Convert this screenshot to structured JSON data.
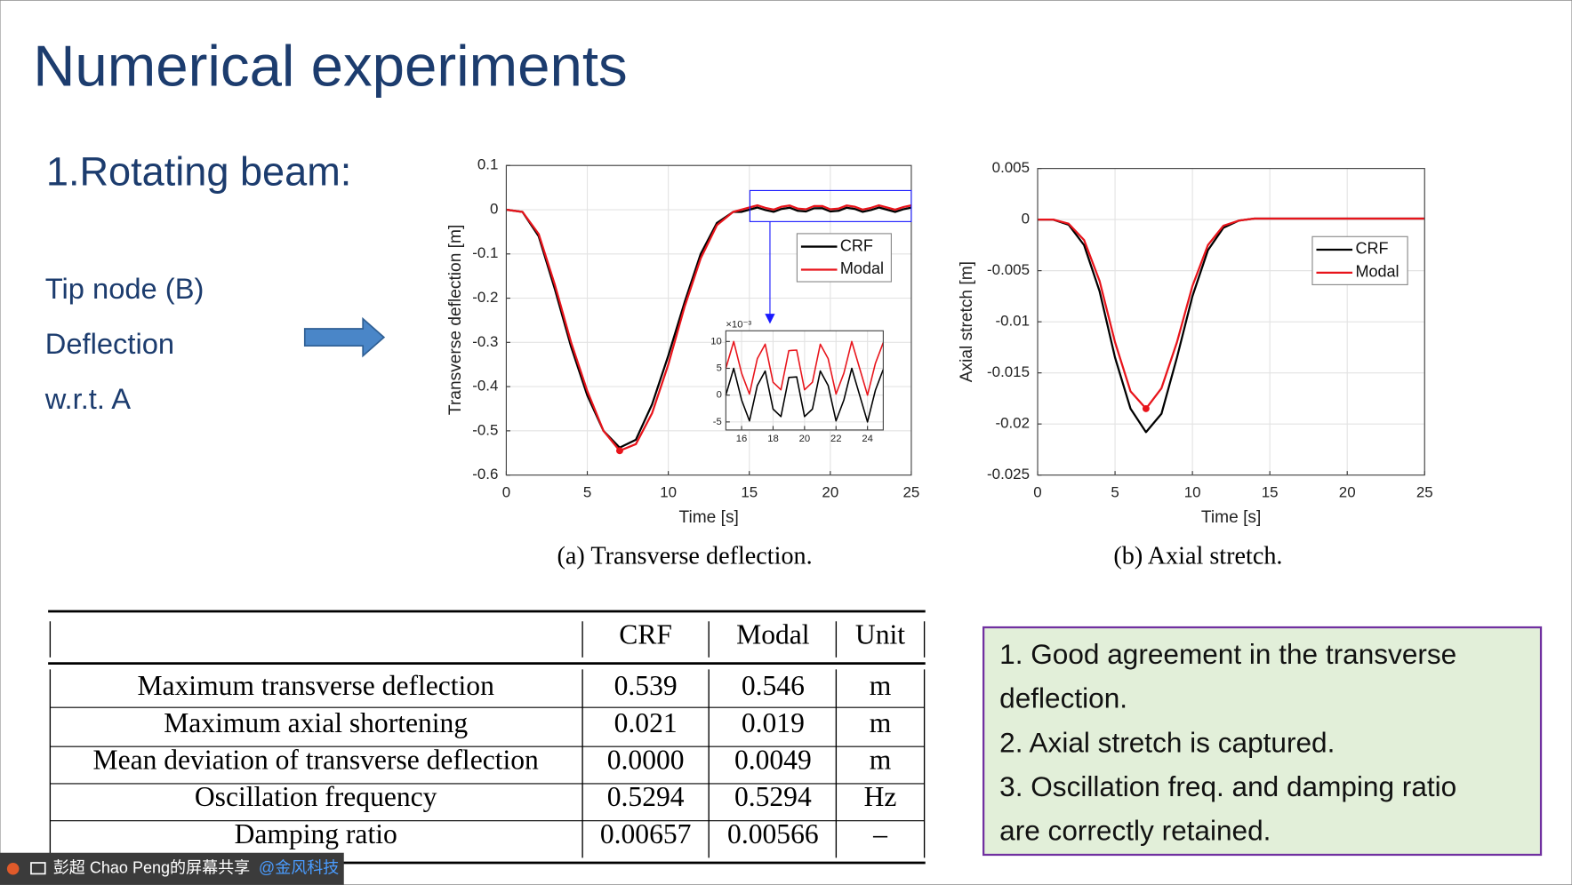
{
  "title": "Numerical experiments",
  "section": "1.Rotating beam:",
  "side_labels": [
    "Tip node (B)",
    "Deflection",
    "w.r.t. A"
  ],
  "captions": [
    "(a) Transverse deflection.",
    "(b) Axial stretch."
  ],
  "chart_data": [
    {
      "type": "line",
      "xlabel": "Time [s]",
      "ylabel": "Transverse deflection [m]",
      "x": [
        0,
        1,
        2,
        3,
        4,
        5,
        6,
        7,
        8,
        9,
        10,
        11,
        12,
        13,
        14,
        14.5,
        15,
        15.5,
        16,
        16.5,
        17,
        17.5,
        18,
        18.5,
        19,
        19.5,
        20,
        20.5,
        21,
        21.5,
        22,
        22.5,
        23,
        23.5,
        24,
        24.5,
        25
      ],
      "series": [
        {
          "name": "CRF",
          "color": "#000000",
          "values": [
            0,
            -0.005,
            -0.06,
            -0.18,
            -0.31,
            -0.42,
            -0.5,
            -0.538,
            -0.52,
            -0.44,
            -0.33,
            -0.21,
            -0.1,
            -0.03,
            -0.005,
            -0.005,
            0,
            0.005,
            -0.0009,
            -0.0048,
            0.0018,
            0.0045,
            -0.0026,
            -0.004,
            0.0033,
            0.0034,
            -0.004,
            -0.0026,
            0.0045,
            0.0018,
            -0.0048,
            -0.0009,
            0.005,
            0,
            -0.005,
            0.0009,
            0.0048
          ]
        },
        {
          "name": "Modal",
          "color": "#e8141b",
          "values": [
            0,
            -0.005,
            -0.055,
            -0.17,
            -0.3,
            -0.41,
            -0.5,
            -0.545,
            -0.53,
            -0.46,
            -0.35,
            -0.22,
            -0.11,
            -0.035,
            -0.005,
            0,
            0.005,
            0.01,
            0.0041,
            0.0002,
            0.0068,
            0.0095,
            0.0024,
            0.001,
            0.0083,
            0.0084,
            0.001,
            0.0024,
            0.0095,
            0.0068,
            0.0002,
            0.0041,
            0.01,
            0.005,
            0,
            0.0059,
            0.0098
          ]
        }
      ],
      "xlim": [
        0,
        25
      ],
      "xticks": [
        0,
        5,
        10,
        15,
        20,
        25
      ],
      "ylim": [
        -0.6,
        0.1
      ],
      "yticks": [
        0.1,
        0,
        -0.1,
        -0.2,
        -0.3,
        -0.4,
        -0.5,
        -0.6
      ],
      "grid": true,
      "legend": "upper right"
    },
    {
      "type": "line",
      "xlabel": "Time [s]",
      "ylabel": "Axial stretch [m]",
      "x": [
        0,
        1,
        2,
        3,
        4,
        5,
        6,
        7,
        8,
        9,
        10,
        11,
        12,
        13,
        14,
        15,
        16,
        17,
        18,
        19,
        20,
        21,
        22,
        23,
        24,
        25
      ],
      "series": [
        {
          "name": "CRF",
          "color": "#000000",
          "values": [
            0,
            0,
            -0.0005,
            -0.0025,
            -0.007,
            -0.0135,
            -0.0185,
            -0.0208,
            -0.019,
            -0.0135,
            -0.0075,
            -0.003,
            -0.0008,
            -0.0001,
            0.0001,
            0.0001,
            0.0001,
            0.0001,
            0.0001,
            0.0001,
            0.0001,
            0.0001,
            0.0001,
            0.0001,
            0.0001,
            0.0001
          ]
        },
        {
          "name": "Modal",
          "color": "#e8141b",
          "values": [
            0,
            0,
            -0.0004,
            -0.002,
            -0.006,
            -0.012,
            -0.0168,
            -0.0185,
            -0.0165,
            -0.012,
            -0.0065,
            -0.0025,
            -0.0006,
            -0.0001,
            0.0001,
            0.0001,
            0.0001,
            0.0001,
            0.0001,
            0.0001,
            0.0001,
            0.0001,
            0.0001,
            0.0001,
            0.0001,
            0.0001
          ]
        }
      ],
      "xlim": [
        0,
        25
      ],
      "xticks": [
        0,
        5,
        10,
        15,
        20,
        25
      ],
      "ylim": [
        -0.025,
        0.005
      ],
      "yticks": [
        0.005,
        0,
        -0.005,
        -0.01,
        -0.015,
        -0.02,
        -0.025
      ],
      "grid": true,
      "legend": "upper right"
    },
    {
      "type": "line",
      "y_multiplier": "×10⁻³",
      "x": [
        15,
        15.5,
        16,
        16.5,
        17,
        17.5,
        18,
        18.5,
        19,
        19.5,
        20,
        20.5,
        21,
        21.5,
        22,
        22.5,
        23,
        23.5,
        24,
        24.5,
        25
      ],
      "series": [
        {
          "name": "CRF",
          "color": "#000000",
          "values": [
            0,
            5,
            -0.9,
            -4.8,
            1.8,
            4.5,
            -2.6,
            -4,
            3.3,
            3.4,
            -4,
            -2.6,
            4.5,
            1.8,
            -4.8,
            -0.9,
            5,
            0,
            -5,
            0.9,
            4.8
          ]
        },
        {
          "name": "Modal",
          "color": "#e8141b",
          "values": [
            5,
            10,
            4.1,
            0.2,
            6.8,
            9.5,
            2.4,
            1,
            8.3,
            8.4,
            1,
            2.4,
            9.5,
            6.8,
            0.2,
            4.1,
            10,
            5,
            0,
            5.9,
            9.8
          ]
        }
      ],
      "xlim": [
        15,
        25
      ],
      "xticks": [
        16,
        18,
        20,
        22,
        24
      ],
      "ylim": [
        -6.5,
        12
      ],
      "yticks": [
        -5,
        0,
        5,
        10
      ],
      "grid": true
    }
  ],
  "table": {
    "header": [
      "CRF",
      "Modal",
      "Unit"
    ],
    "rows": [
      [
        "Maximum transverse deflection",
        "0.539",
        "0.546",
        "m"
      ],
      [
        "Maximum axial shortening",
        "0.021",
        "0.019",
        "m"
      ],
      [
        "Mean deviation of transverse deflection",
        "0.0000",
        "0.0049",
        "m"
      ],
      [
        "Oscillation frequency",
        "0.5294",
        "0.5294",
        "Hz"
      ],
      [
        "Damping ratio",
        "0.00657",
        "0.00566",
        "–"
      ]
    ]
  },
  "notes": [
    "1. Good agreement in the transverse",
    "deflection.",
    "2. Axial stretch is captured.",
    "3. Oscillation freq. and damping ratio",
    "are correctly retained."
  ],
  "share_bar": {
    "presenter": "彭超 Chao Peng的屏幕共享",
    "org": "@金风科技"
  }
}
